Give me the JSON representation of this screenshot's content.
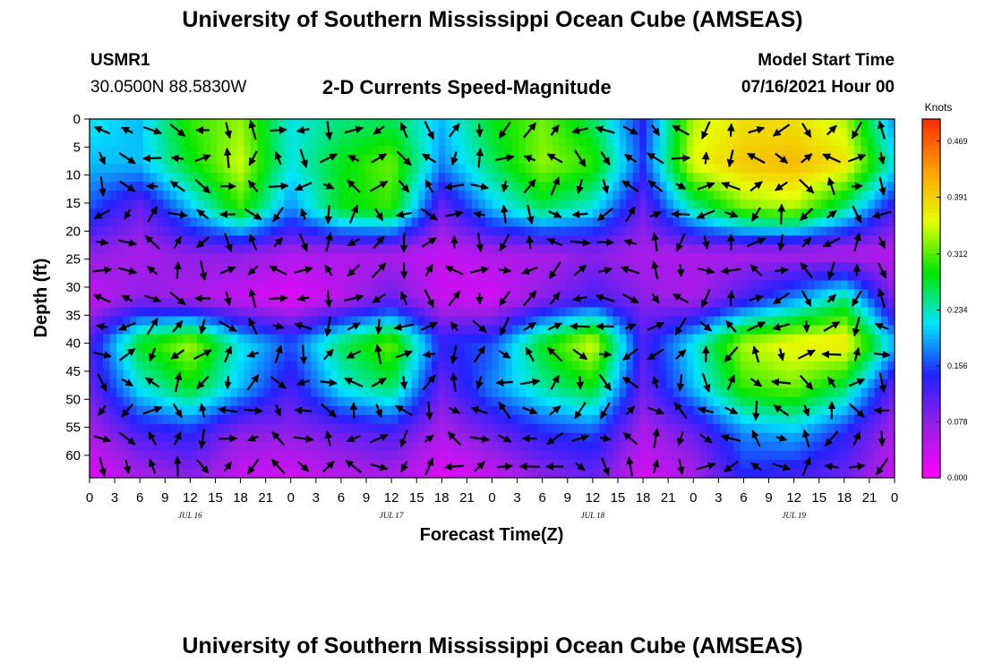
{
  "header": {
    "title_top": "University of Southern Mississippi Ocean Cube (AMSEAS)",
    "title_bottom": "University of Southern Mississippi Ocean Cube (AMSEAS)",
    "station": "USMR1",
    "location": "30.0500N  88.5830W",
    "subtitle": "2-D Currents Speed-Magnitude",
    "model_label": "Model Start Time",
    "model_time": "07/16/2021 Hour 00"
  },
  "colors": {
    "palette": [
      "#ff00ff",
      "#9a1fe6",
      "#2222ff",
      "#00e5ff",
      "#00e600",
      "#e6ff00",
      "#ffa000",
      "#ff2a00"
    ],
    "arrow": "#000000"
  },
  "chart_data": {
    "type": "heatmap",
    "title": "2-D Currents Speed-Magnitude",
    "xlabel": "Forecast Time(Z)",
    "ylabel": "Depth (ft)",
    "x_ticks": [
      "0",
      "3",
      "6",
      "9",
      "12",
      "15",
      "18",
      "21",
      "0",
      "3",
      "6",
      "9",
      "12",
      "15",
      "18",
      "21",
      "0",
      "3",
      "6",
      "9",
      "12",
      "15",
      "18",
      "21",
      "0",
      "3",
      "6",
      "9",
      "12",
      "15",
      "18",
      "21",
      "0"
    ],
    "date_labels": [
      {
        "label": "JUL 16",
        "hour": 12
      },
      {
        "label": "JUL 17",
        "hour": 36
      },
      {
        "label": "JUL 18",
        "hour": 60
      },
      {
        "label": "JUL 19",
        "hour": 84
      }
    ],
    "xlim": [
      0,
      96
    ],
    "y_ticks": [
      0,
      5,
      10,
      15,
      20,
      25,
      30,
      35,
      40,
      45,
      50,
      55,
      60
    ],
    "ylim": [
      0,
      64
    ],
    "colorbar": {
      "label": "Knots",
      "range": [
        0,
        0.5
      ],
      "tick_values": [
        0.0,
        0.078,
        0.156,
        0.234,
        0.312,
        0.391,
        0.469
      ],
      "tick_labels": [
        "0.000",
        "0.078",
        "0.156",
        "0.234",
        "0.312",
        "0.391",
        "0.469"
      ]
    },
    "speed_hours": [
      0,
      6,
      12,
      18,
      24,
      30,
      36,
      42,
      48,
      54,
      60,
      66,
      72,
      78,
      84,
      90,
      96
    ],
    "speed_depths": [
      0,
      8,
      16,
      24,
      32,
      40,
      48,
      56,
      64
    ],
    "speed_knots": [
      [
        0.22,
        0.2,
        0.3,
        0.33,
        0.22,
        0.25,
        0.26,
        0.2,
        0.28,
        0.32,
        0.26,
        0.14,
        0.34,
        0.38,
        0.38,
        0.34,
        0.18
      ],
      [
        0.2,
        0.2,
        0.28,
        0.35,
        0.22,
        0.28,
        0.32,
        0.18,
        0.26,
        0.33,
        0.3,
        0.15,
        0.36,
        0.4,
        0.41,
        0.38,
        0.22
      ],
      [
        0.16,
        0.1,
        0.2,
        0.3,
        0.18,
        0.28,
        0.3,
        0.1,
        0.2,
        0.26,
        0.22,
        0.1,
        0.24,
        0.32,
        0.34,
        0.25,
        0.12
      ],
      [
        0.08,
        0.06,
        0.08,
        0.08,
        0.06,
        0.06,
        0.06,
        0.04,
        0.06,
        0.06,
        0.08,
        0.06,
        0.06,
        0.06,
        0.06,
        0.05,
        0.05
      ],
      [
        0.04,
        0.08,
        0.06,
        0.04,
        0.02,
        0.05,
        0.1,
        0.04,
        0.03,
        0.08,
        0.12,
        0.08,
        0.06,
        0.12,
        0.18,
        0.25,
        0.08
      ],
      [
        0.12,
        0.28,
        0.34,
        0.22,
        0.16,
        0.26,
        0.32,
        0.14,
        0.16,
        0.28,
        0.36,
        0.12,
        0.22,
        0.34,
        0.37,
        0.38,
        0.2
      ],
      [
        0.1,
        0.22,
        0.28,
        0.2,
        0.12,
        0.22,
        0.26,
        0.1,
        0.18,
        0.24,
        0.28,
        0.1,
        0.2,
        0.3,
        0.32,
        0.26,
        0.1
      ],
      [
        0.06,
        0.12,
        0.14,
        0.08,
        0.08,
        0.1,
        0.12,
        0.06,
        0.1,
        0.14,
        0.16,
        0.06,
        0.1,
        0.18,
        0.2,
        0.14,
        0.06
      ],
      [
        0.02,
        0.06,
        0.08,
        0.04,
        0.03,
        0.05,
        0.06,
        0.02,
        0.04,
        0.08,
        0.1,
        0.03,
        0.06,
        0.14,
        0.12,
        0.1,
        0.04
      ]
    ]
  }
}
